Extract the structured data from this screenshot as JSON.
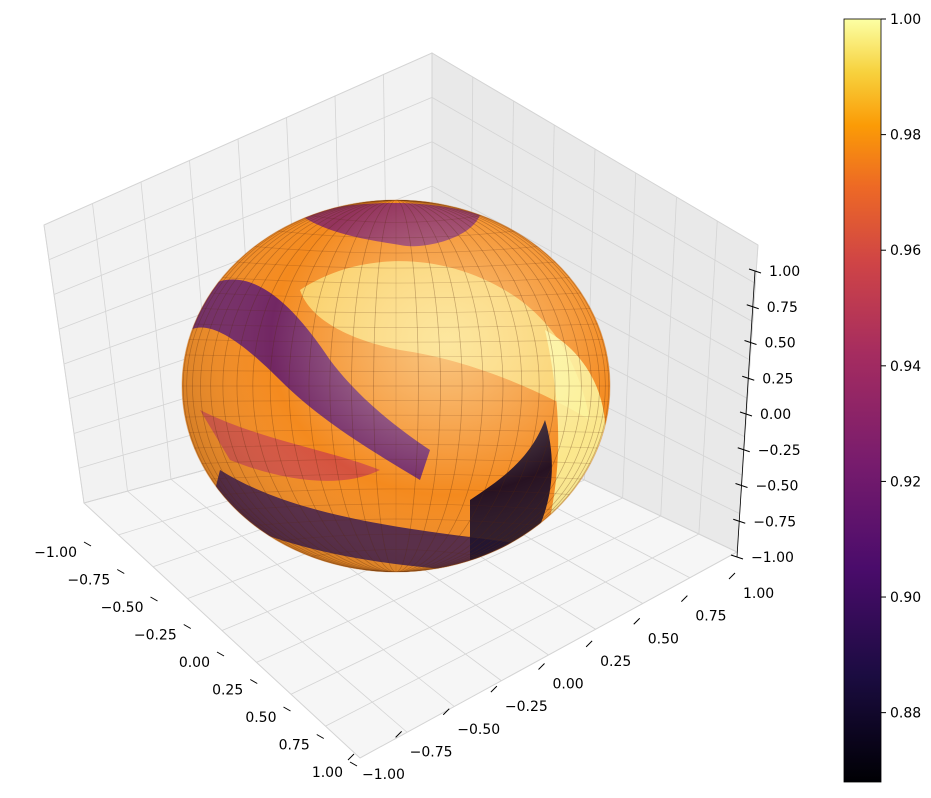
{
  "chart_data": {
    "type": "surface3d",
    "title": "",
    "surface": "sphere of radius ~0.93-1.0 colored by radius value (inferno colormap)",
    "x_axis": {
      "label": "",
      "range": [
        -1.0,
        1.0
      ],
      "ticks": [
        "−1.00",
        "−0.75",
        "−0.50",
        "−0.25",
        "0.00",
        "0.25",
        "0.50",
        "0.75",
        "1.00"
      ]
    },
    "y_axis": {
      "label": "",
      "range": [
        -1.0,
        1.0
      ],
      "ticks": [
        "−1.00",
        "−0.75",
        "−0.50",
        "−0.25",
        "0.00",
        "0.25",
        "0.50",
        "0.75",
        "1.00"
      ]
    },
    "z_axis": {
      "label": "",
      "range": [
        -1.0,
        1.0
      ],
      "ticks": [
        "−1.00",
        "−0.75",
        "−0.50",
        "−0.25",
        "0.00",
        "0.25",
        "0.50",
        "0.75",
        "1.00"
      ]
    },
    "colorbar": {
      "colormap": "inferno",
      "range": [
        0.868,
        1.0
      ],
      "ticks": [
        "0.88",
        "0.90",
        "0.92",
        "0.94",
        "0.96",
        "0.98",
        "1.00"
      ],
      "tick_values": [
        0.88,
        0.9,
        0.92,
        0.94,
        0.96,
        0.98,
        1.0
      ]
    },
    "grid": true
  }
}
